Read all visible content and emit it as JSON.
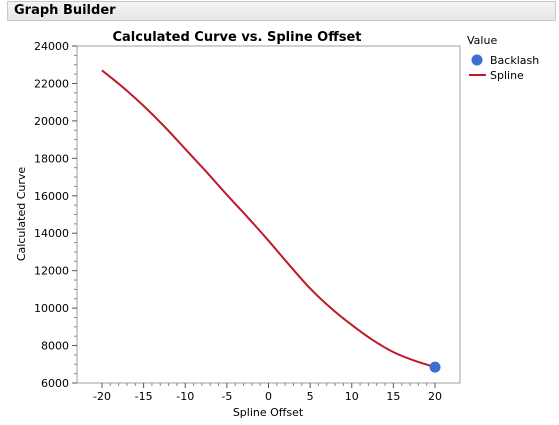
{
  "window": {
    "title": "Graph Builder"
  },
  "legend": {
    "title": "Value",
    "items": [
      {
        "label": "Backlash",
        "marker": "circle",
        "color": "#3b6fd6"
      },
      {
        "label": "Spline",
        "marker": "line",
        "color": "#c0182a"
      }
    ]
  },
  "chart_data": {
    "type": "line",
    "title": "Calculated Curve vs. Spline Offset",
    "xlabel": "Spline Offset",
    "ylabel": "Calculated Curve",
    "xlim": [
      -23,
      23
    ],
    "ylim": [
      6000,
      24000
    ],
    "xticks": [
      -20,
      -15,
      -10,
      -5,
      0,
      5,
      10,
      15,
      20
    ],
    "yticks": [
      6000,
      8000,
      10000,
      12000,
      14000,
      16000,
      18000,
      20000,
      22000,
      24000
    ],
    "grid": false,
    "legend_position": "right",
    "series": [
      {
        "name": "Spline",
        "type": "line",
        "color": "#c0182a",
        "x": [
          -20,
          -17.5,
          -15,
          -12.5,
          -10,
          -7.5,
          -5,
          -2.5,
          0,
          2.5,
          5,
          7.5,
          10,
          12.5,
          15,
          17.5,
          20
        ],
        "y": [
          22700,
          21800,
          20800,
          19700,
          18500,
          17300,
          16050,
          14850,
          13600,
          12300,
          11050,
          10000,
          9100,
          8300,
          7650,
          7200,
          6850
        ]
      },
      {
        "name": "Backlash",
        "type": "scatter",
        "color": "#3b6fd6",
        "x": [
          20
        ],
        "y": [
          6850
        ]
      }
    ]
  }
}
